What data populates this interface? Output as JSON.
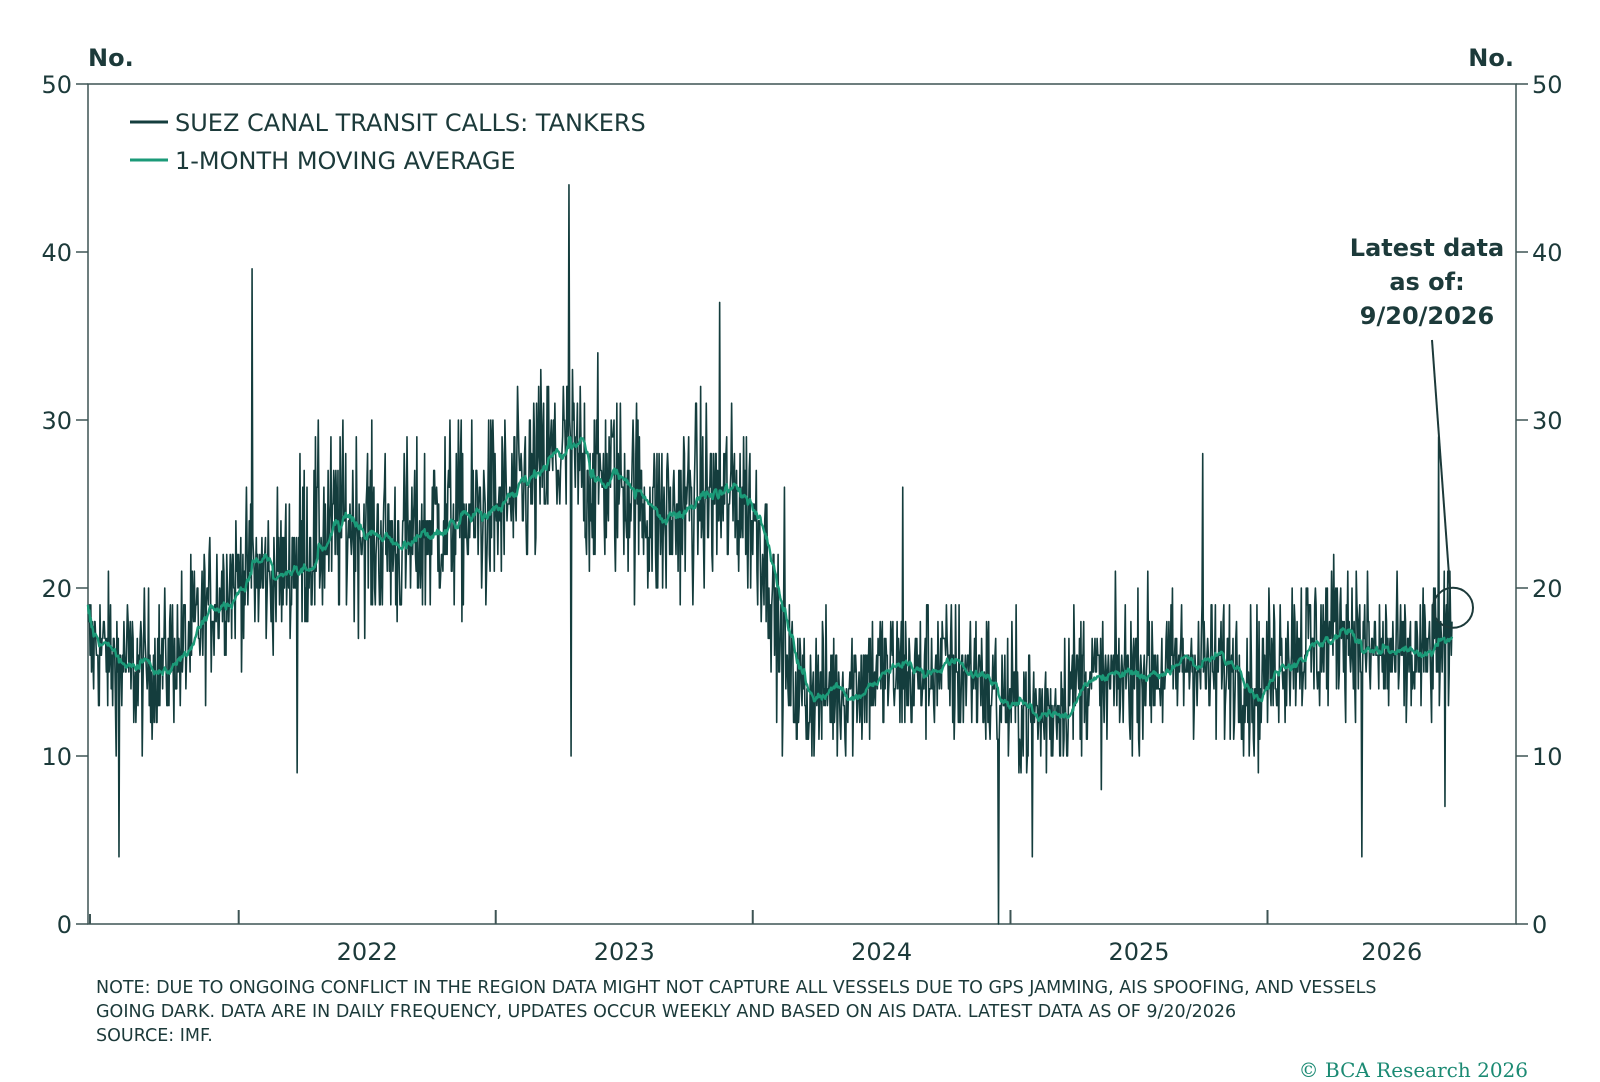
{
  "chart_data": {
    "type": "line",
    "y_unit_left": "No.",
    "y_unit_right": "No.",
    "ylim": [
      0,
      50
    ],
    "y_ticks": [
      0,
      10,
      20,
      30,
      40,
      50
    ],
    "x_range": [
      "2021-06-01",
      "2026-09-20"
    ],
    "x_tick_labels": [
      "2022",
      "2023",
      "2024",
      "2025",
      "2026"
    ],
    "grid": false,
    "legend_position": "top-left",
    "colors": {
      "daily": "#143d3d",
      "average": "#1b9a78"
    },
    "series": [
      {
        "name": "SUEZ CANAL TRANSIT CALLS: TANKERS",
        "frequency": "daily",
        "approx_monthly_levels": [
          {
            "month": "2021-06",
            "value": 16.5
          },
          {
            "month": "2021-07",
            "value": 15.5
          },
          {
            "month": "2021-08",
            "value": 15.0
          },
          {
            "month": "2021-09",
            "value": 15.5
          },
          {
            "month": "2021-10",
            "value": 16.5
          },
          {
            "month": "2021-11",
            "value": 18.5
          },
          {
            "month": "2021-12",
            "value": 20.5
          },
          {
            "month": "2022-01",
            "value": 21.0
          },
          {
            "month": "2022-02",
            "value": 20.5
          },
          {
            "month": "2022-03",
            "value": 21.5
          },
          {
            "month": "2022-04",
            "value": 23.0
          },
          {
            "month": "2022-05",
            "value": 23.5
          },
          {
            "month": "2022-06",
            "value": 24.0
          },
          {
            "month": "2022-07",
            "value": 23.0
          },
          {
            "month": "2022-08",
            "value": 22.5
          },
          {
            "month": "2022-09",
            "value": 23.0
          },
          {
            "month": "2022-10",
            "value": 24.0
          },
          {
            "month": "2022-11",
            "value": 24.0
          },
          {
            "month": "2022-12",
            "value": 24.5
          },
          {
            "month": "2023-01",
            "value": 25.0
          },
          {
            "month": "2023-02",
            "value": 26.0
          },
          {
            "month": "2023-03",
            "value": 27.5
          },
          {
            "month": "2023-04",
            "value": 28.0
          },
          {
            "month": "2023-05",
            "value": 26.5
          },
          {
            "month": "2023-06",
            "value": 26.5
          },
          {
            "month": "2023-07",
            "value": 26.0
          },
          {
            "month": "2023-08",
            "value": 24.0
          },
          {
            "month": "2023-09",
            "value": 24.5
          },
          {
            "month": "2023-10",
            "value": 25.5
          },
          {
            "month": "2023-11",
            "value": 25.0
          },
          {
            "month": "2023-12",
            "value": 25.5
          },
          {
            "month": "2024-01",
            "value": 23.0
          },
          {
            "month": "2024-02",
            "value": 15.0
          },
          {
            "month": "2024-03",
            "value": 13.5
          },
          {
            "month": "2024-04",
            "value": 14.0
          },
          {
            "month": "2024-05",
            "value": 14.0
          },
          {
            "month": "2024-06",
            "value": 15.0
          },
          {
            "month": "2024-07",
            "value": 15.0
          },
          {
            "month": "2024-08",
            "value": 14.5
          },
          {
            "month": "2024-09",
            "value": 15.5
          },
          {
            "month": "2024-10",
            "value": 15.0
          },
          {
            "month": "2024-11",
            "value": 15.0
          },
          {
            "month": "2024-12",
            "value": 13.5
          },
          {
            "month": "2025-01",
            "value": 13.0
          },
          {
            "month": "2025-02",
            "value": 12.5
          },
          {
            "month": "2025-03",
            "value": 13.5
          },
          {
            "month": "2025-04",
            "value": 15.0
          },
          {
            "month": "2025-05",
            "value": 14.0
          },
          {
            "month": "2025-06",
            "value": 15.0
          },
          {
            "month": "2025-07",
            "value": 15.5
          },
          {
            "month": "2025-08",
            "value": 15.0
          },
          {
            "month": "2025-09",
            "value": 16.0
          },
          {
            "month": "2025-10",
            "value": 15.0
          },
          {
            "month": "2025-11",
            "value": 15.5
          },
          {
            "month": "2025-12",
            "value": 14.0
          },
          {
            "month": "2026-01",
            "value": 16.0
          },
          {
            "month": "2026-02",
            "value": 17.0
          },
          {
            "month": "2026-03",
            "value": 16.5
          },
          {
            "month": "2026-04",
            "value": 18.0
          },
          {
            "month": "2026-05",
            "value": 16.5
          },
          {
            "month": "2026-06",
            "value": 16.0
          },
          {
            "month": "2026-07",
            "value": 15.5
          },
          {
            "month": "2026-08",
            "value": 16.0
          },
          {
            "month": "2026-09",
            "value": 16.5
          }
        ],
        "notable_points": [
          {
            "x": "2021-07-15",
            "y": 4
          },
          {
            "x": "2022-01-20",
            "y": 39
          },
          {
            "x": "2022-03-25",
            "y": 9
          },
          {
            "x": "2023-04-15",
            "y": 44
          },
          {
            "x": "2023-04-18",
            "y": 10
          },
          {
            "x": "2023-11-15",
            "y": 37
          },
          {
            "x": "2024-02-15",
            "y": 26
          },
          {
            "x": "2024-08-01",
            "y": 26
          },
          {
            "x": "2024-12-15",
            "y": 0
          },
          {
            "x": "2025-02-01",
            "y": 4
          },
          {
            "x": "2025-10-01",
            "y": 28
          },
          {
            "x": "2026-05-15",
            "y": 4
          },
          {
            "x": "2026-09-01",
            "y": 29
          },
          {
            "x": "2026-09-10",
            "y": 7
          }
        ]
      },
      {
        "name": "1-MONTH MOVING AVERAGE",
        "frequency": "daily"
      }
    ],
    "annotation": {
      "lines": [
        "Latest data",
        "as of:",
        "9/20/2026"
      ],
      "point": {
        "x": "2026-09-20",
        "y": 19
      }
    }
  },
  "note": {
    "lines": [
      "NOTE: DUE TO ONGOING CONFLICT IN THE REGION DATA MIGHT NOT CAPTURE ALL VESSELS DUE TO GPS JAMMING, AIS SPOOFING, AND VESSELS",
      "GOING DARK. DATA ARE IN DAILY FREQUENCY, UPDATES OCCUR WEEKLY AND BASED ON AIS DATA. LATEST DATA AS OF 9/20/2026",
      "SOURCE: IMF."
    ]
  },
  "copyright": "© BCA Research 2026"
}
